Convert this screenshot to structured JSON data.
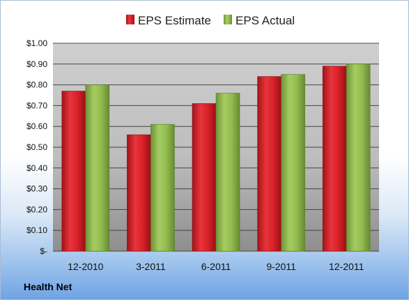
{
  "chart_data": {
    "type": "bar",
    "categories": [
      "12-2010",
      "3-2011",
      "6-2011",
      "9-2011",
      "12-2011"
    ],
    "series": [
      {
        "name": "EPS Estimate",
        "values": [
          0.77,
          0.56,
          0.71,
          0.84,
          0.89
        ],
        "color": "#d21f26"
      },
      {
        "name": "EPS Actual",
        "values": [
          0.8,
          0.61,
          0.76,
          0.85,
          0.9
        ],
        "color": "#8db84a"
      }
    ],
    "ylim": [
      0,
      1.0
    ],
    "yticks": [
      0,
      0.1,
      0.2,
      0.3,
      0.4,
      0.5,
      0.6,
      0.7,
      0.8,
      0.9,
      1.0
    ],
    "ytick_labels": [
      "$-",
      "$0.10",
      "$0.20",
      "$0.30",
      "$0.40",
      "$0.50",
      "$0.60",
      "$0.70",
      "$0.80",
      "$0.90",
      "$1.00"
    ],
    "grid": true,
    "legend_position": "top"
  },
  "footer": {
    "company": "Health Net"
  }
}
